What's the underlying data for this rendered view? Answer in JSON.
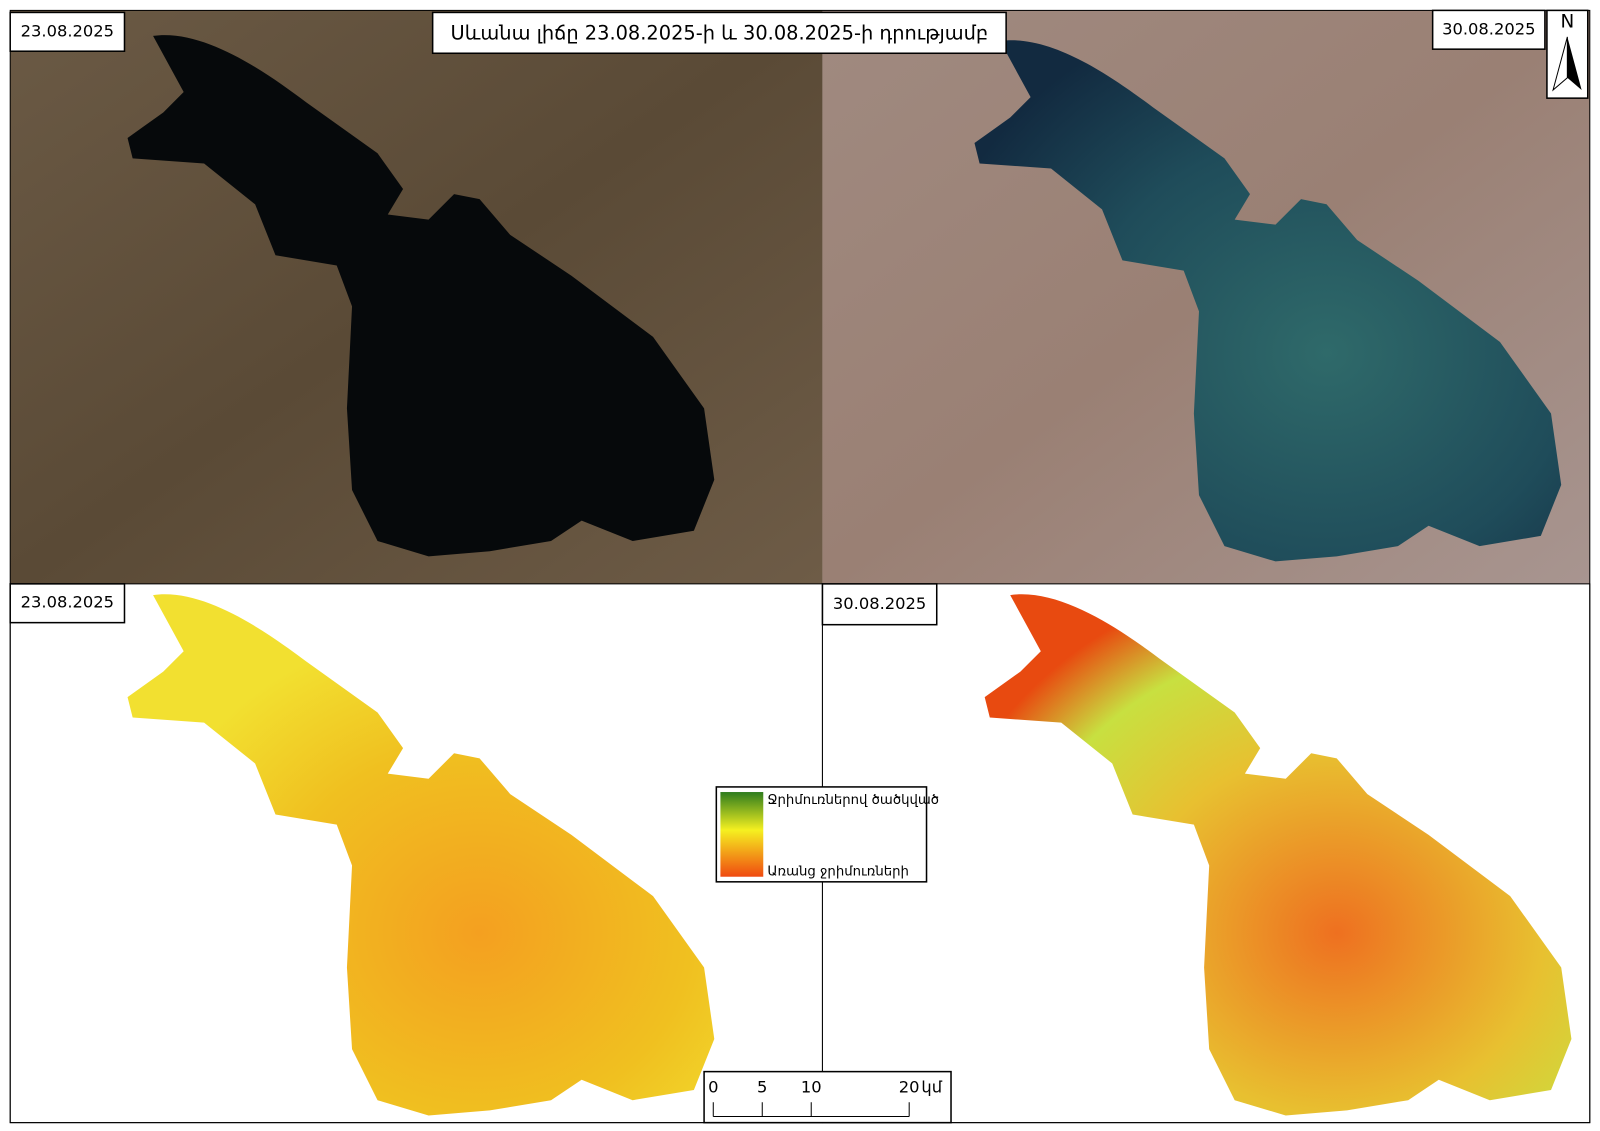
{
  "title": "Սևանա լիճը 23.08.2025-ի և 30.08.2025-ի դրությամբ",
  "panels": [
    {
      "date": "23.08.2025"
    },
    {
      "date": "30.08.2025"
    },
    {
      "date": "23.08.2025"
    },
    {
      "date": "30.08.2025"
    }
  ],
  "north_arrow": "N",
  "legend": {
    "top_label": "Ջրիմուռներով ծածկված",
    "bottom_label": "Առանց ջրիմուռների"
  },
  "scale_bar": {
    "ticks": [
      0,
      5,
      10,
      20
    ],
    "unit": "կմ"
  }
}
